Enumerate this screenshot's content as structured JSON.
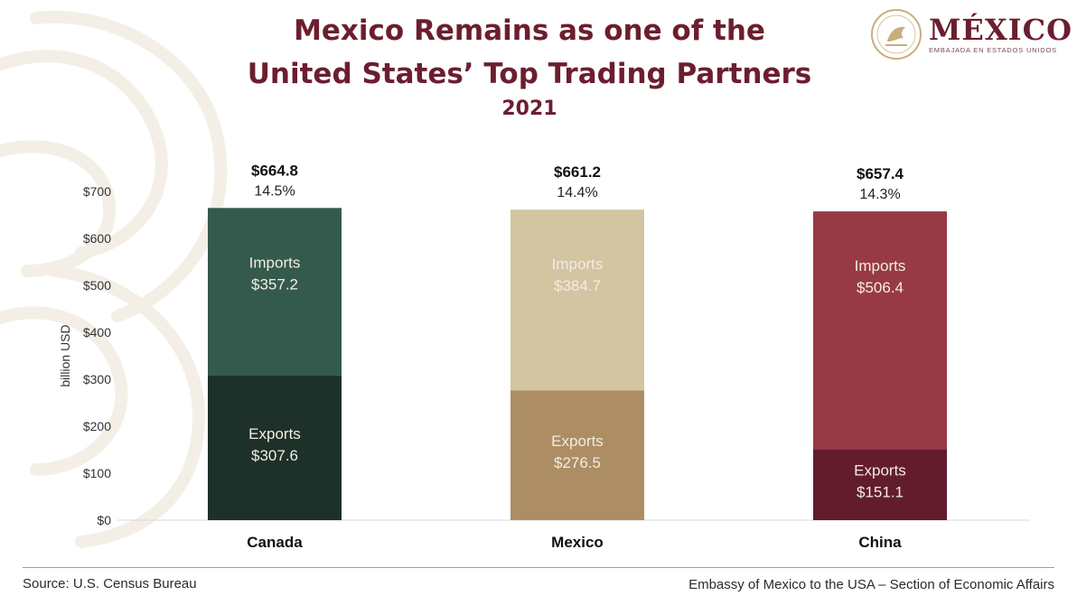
{
  "header": {
    "title_line1": "Mexico Remains as one of the",
    "title_line2": "United States’ Top Trading Partners",
    "year": "2021"
  },
  "logo": {
    "word": "MÉXICO",
    "subtitle": "EMBAJADA EN ESTADOS UNIDOS",
    "seal_icon": "mexico-coat-of-arms-icon"
  },
  "footer": {
    "source": "Source: U.S. Census Bureau",
    "credit": "Embassy of Mexico to the USA – Section of Economic Affairs"
  },
  "chart_data": {
    "type": "bar",
    "stacked": true,
    "title": "Mexico Remains as one of the United States’ Top Trading Partners",
    "subtitle": "2021",
    "ylabel": "billion USD",
    "xlabel": "",
    "ylim": [
      0,
      700
    ],
    "ytick_labels": [
      "$0",
      "$100",
      "$200",
      "$300",
      "$400",
      "$500",
      "$600",
      "$700"
    ],
    "yticks": [
      0,
      100,
      200,
      300,
      400,
      500,
      600,
      700
    ],
    "grid": false,
    "categories": [
      "Canada",
      "Mexico",
      "China"
    ],
    "totals": [
      664.8,
      661.2,
      657.4
    ],
    "total_labels": [
      "$664.8",
      "$661.2",
      "$657.4"
    ],
    "share_labels": [
      "14.5%",
      "14.4%",
      "14.3%"
    ],
    "series": [
      {
        "name": "Exports",
        "values": [
          307.6,
          276.5,
          151.1
        ],
        "value_labels": [
          "$307.6",
          "$276.5",
          "$151.1"
        ],
        "colors": [
          "#1d3029",
          "#ad8e64",
          "#631c2e"
        ]
      },
      {
        "name": "Imports",
        "values": [
          357.2,
          384.7,
          506.4
        ],
        "value_labels": [
          "$357.2",
          "$384.7",
          "$506.4"
        ],
        "colors": [
          "#335a4d",
          "#d3c4a2",
          "#973a46"
        ]
      }
    ]
  }
}
